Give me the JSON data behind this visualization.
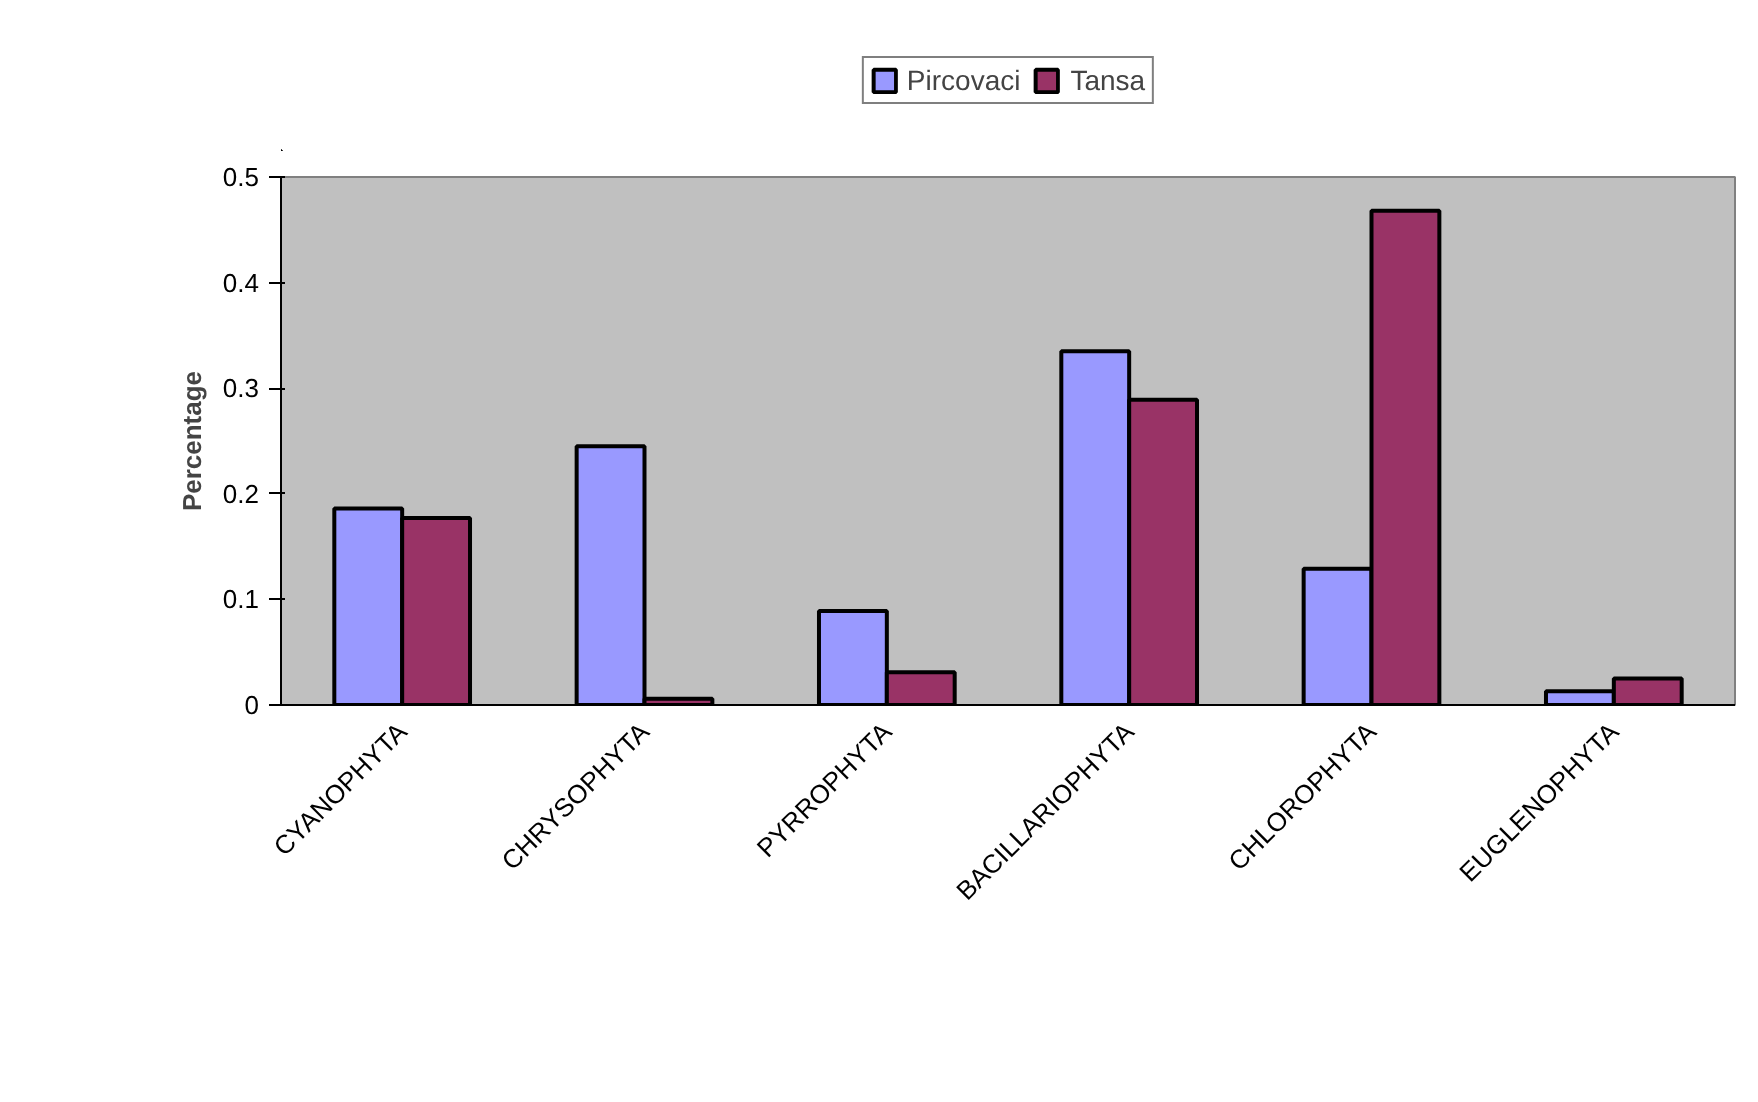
{
  "chart_data": {
    "type": "bar",
    "ylabel": "Percentage",
    "categories": [
      "CYANOPHYTA",
      "CHRYSOPHYTA",
      "PYRROPHYTA",
      "BACILLARIOPHYTA",
      "CHLOROPHYTA",
      "EUGLENOPHYTA"
    ],
    "series": [
      {
        "name": "Pircovaci",
        "color": "#9999ff",
        "values": [
          0.186,
          0.245,
          0.089,
          0.335,
          0.129,
          0.013
        ]
      },
      {
        "name": "Tansa",
        "color": "#993366",
        "values": [
          0.177,
          0.006,
          0.031,
          0.289,
          0.468,
          0.025
        ]
      }
    ],
    "ylim": [
      0,
      0.5
    ],
    "yticks": [
      0,
      0.1,
      0.2,
      0.3,
      0.4,
      0.5
    ],
    "grid": false,
    "legend": "top"
  }
}
